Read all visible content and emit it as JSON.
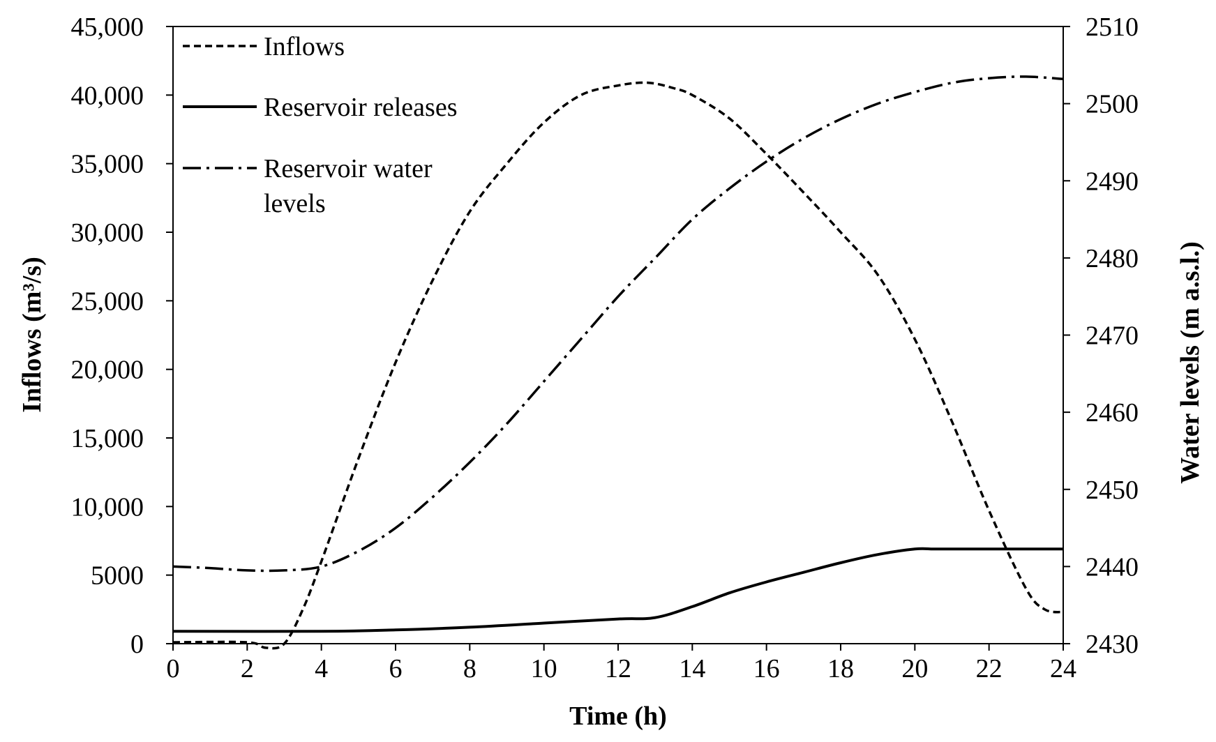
{
  "chart_data": {
    "type": "line",
    "xlabel": "Time (h)",
    "ylabel_left": "Inflows (m³/s)",
    "ylabel_right": "Water levels (m a.s.l.)",
    "xlim": [
      0,
      24
    ],
    "ylim_left": [
      0,
      45000
    ],
    "ylim_right": [
      2430,
      2510
    ],
    "x_ticks": [
      "0",
      "2",
      "4",
      "6",
      "8",
      "10",
      "12",
      "14",
      "16",
      "18",
      "20",
      "22",
      "24"
    ],
    "y_left_ticks": [
      "0",
      "5000",
      "10,000",
      "15,000",
      "20,000",
      "25,000",
      "30,000",
      "35,000",
      "40,000",
      "45,000"
    ],
    "y_right_ticks": [
      "2430",
      "2440",
      "2450",
      "2460",
      "2470",
      "2480",
      "2490",
      "2500",
      "2510"
    ],
    "legend": [
      "Inflows",
      "Reservoir releases",
      "Reservoir water",
      "levels"
    ],
    "series": [
      {
        "name": "Inflows",
        "axis": "left",
        "style": "dashed",
        "x": [
          0,
          2,
          2.5,
          3,
          3.5,
          4,
          5,
          6,
          7,
          8,
          9,
          10,
          11,
          12,
          12.8,
          13.5,
          14,
          15,
          16,
          17,
          18,
          19,
          20,
          21,
          22,
          23,
          23.5,
          24
        ],
        "y": [
          100,
          100,
          -300,
          0,
          2500,
          6000,
          13500,
          20500,
          26500,
          31500,
          35000,
          38000,
          40000,
          40700,
          40900,
          40500,
          40000,
          38300,
          35700,
          32900,
          30000,
          26900,
          22200,
          16200,
          9700,
          4000,
          2500,
          2300
        ]
      },
      {
        "name": "Reservoir releases",
        "axis": "left",
        "style": "solid",
        "x": [
          0,
          4,
          6,
          8,
          10,
          12,
          13,
          14,
          15,
          16,
          17,
          18,
          19,
          20,
          20.5,
          21,
          22,
          23,
          24
        ],
        "y": [
          900,
          900,
          1000,
          1200,
          1500,
          1800,
          1900,
          2700,
          3700,
          4500,
          5200,
          5900,
          6500,
          6900,
          6900,
          6900,
          6900,
          6900,
          6900
        ]
      },
      {
        "name": "Reservoir water levels",
        "axis": "right",
        "style": "dash-dot",
        "x": [
          0,
          1,
          2,
          3,
          4,
          5,
          6,
          7,
          8,
          9,
          10,
          11,
          12,
          13,
          14,
          15,
          16,
          17,
          18,
          19,
          20,
          21,
          22,
          23,
          24
        ],
        "y": [
          2440,
          2439.8,
          2439.5,
          2439.5,
          2440,
          2442,
          2445,
          2449,
          2453.5,
          2458.5,
          2464,
          2469.5,
          2475,
          2480,
          2485,
          2489,
          2492.5,
          2495.5,
          2498,
          2500,
          2501.5,
          2502.7,
          2503.3,
          2503.5,
          2503.2
        ]
      }
    ]
  }
}
